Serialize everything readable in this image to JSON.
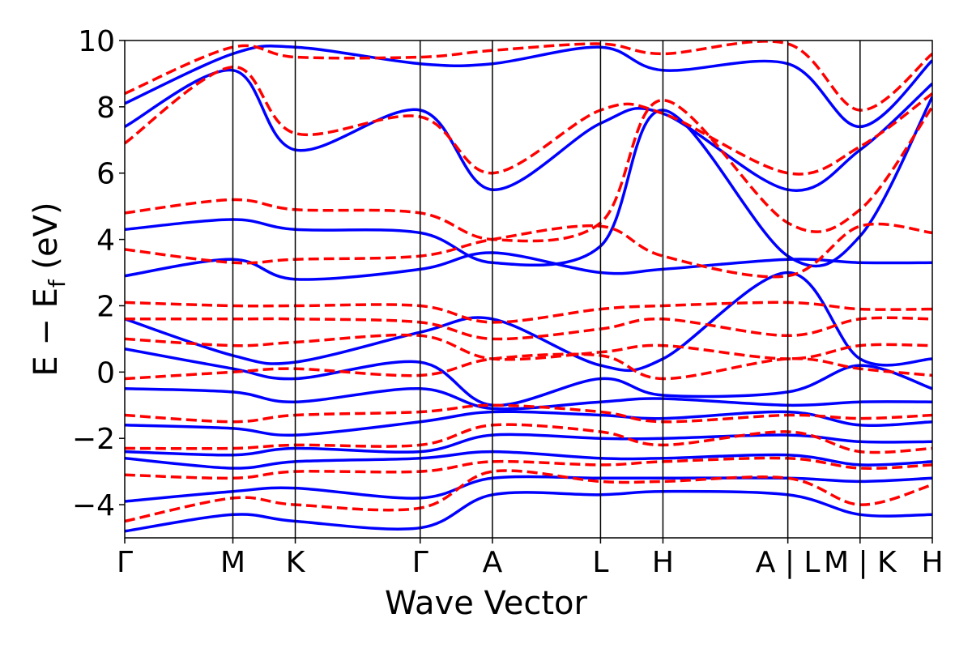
{
  "chart_data": {
    "type": "line",
    "xlabel": "Wave Vector",
    "ylabel": "E − E",
    "ylabel_sub": "f",
    "ylabel_unit": " (eV)",
    "ylim": [
      -5,
      10
    ],
    "yticks": [
      -4,
      -2,
      0,
      2,
      4,
      6,
      8,
      10
    ],
    "ytick_labels": [
      "−4",
      "−2",
      "0",
      "2",
      "4",
      "6",
      "8",
      "10"
    ],
    "grid": false,
    "legend": "none",
    "high_symmetry_ticks": [
      {
        "label": "Γ",
        "pos": 0.0
      },
      {
        "label": "M",
        "pos": 1.0
      },
      {
        "label": "K",
        "pos": 1.577
      },
      {
        "label": "Γ",
        "pos": 2.732
      },
      {
        "label": "A",
        "pos": 3.4
      },
      {
        "label": "L",
        "pos": 4.4
      },
      {
        "label": "H",
        "pos": 4.977
      },
      {
        "label": "A | L",
        "pos": 6.132
      },
      {
        "label": "M | K",
        "pos": 6.8
      },
      {
        "label": "H",
        "pos": 7.468
      }
    ],
    "xlim": [
      0,
      7.468
    ],
    "series": [
      {
        "style": "solid",
        "color": "#0000ff",
        "bands": [
          {
            "x": [
              0,
              1,
              1.577,
              2.732,
              3.4,
              4.4,
              4.977,
              6.132,
              6.8,
              7.468
            ],
            "y": [
              -4.8,
              -4.3,
              -4.5,
              -4.7,
              -3.7,
              -3.7,
              -3.6,
              -3.7,
              -4.3,
              -4.3
            ]
          },
          {
            "x": [
              0,
              1,
              1.577,
              2.732,
              3.4,
              4.4,
              4.977,
              6.132,
              6.8,
              7.468
            ],
            "y": [
              -3.9,
              -3.6,
              -3.5,
              -3.8,
              -3.2,
              -3.2,
              -3.2,
              -3.2,
              -3.3,
              -3.2
            ]
          },
          {
            "x": [
              0,
              1,
              1.577,
              2.732,
              3.4,
              4.4,
              4.977,
              6.132,
              6.8,
              7.468
            ],
            "y": [
              -2.6,
              -2.9,
              -2.7,
              -2.6,
              -2.4,
              -2.6,
              -2.6,
              -2.5,
              -2.8,
              -2.7
            ]
          },
          {
            "x": [
              0,
              1,
              1.577,
              2.732,
              3.4,
              4.4,
              4.977,
              6.132,
              6.8,
              7.468
            ],
            "y": [
              -2.4,
              -2.5,
              -2.3,
              -2.4,
              -1.9,
              -2.0,
              -2.0,
              -1.9,
              -2.1,
              -2.1
            ]
          },
          {
            "x": [
              0,
              1,
              1.577,
              2.732,
              3.4,
              4.4,
              4.977,
              6.132,
              6.8,
              7.468
            ],
            "y": [
              -1.6,
              -1.7,
              -1.9,
              -1.5,
              -1.2,
              -1.3,
              -1.4,
              -1.2,
              -1.6,
              -1.5
            ]
          },
          {
            "x": [
              0,
              1,
              1.577,
              2.732,
              3.4,
              4.4,
              4.977,
              6.132,
              6.8,
              7.468
            ],
            "y": [
              -0.5,
              -0.6,
              -0.9,
              -0.5,
              -1.1,
              -0.9,
              -0.8,
              -1.0,
              -0.9,
              -0.9
            ]
          },
          {
            "x": [
              0,
              1,
              1.577,
              2.732,
              3.4,
              4.4,
              4.977,
              6.132,
              6.8,
              7.468
            ],
            "y": [
              0.7,
              0.1,
              -0.2,
              0.3,
              -1.0,
              -0.2,
              -0.7,
              -0.6,
              0.2,
              -0.5
            ]
          },
          {
            "x": [
              0,
              1,
              1.577,
              2.732,
              3.4,
              4.4,
              4.977,
              6.132,
              6.8,
              7.468
            ],
            "y": [
              1.6,
              0.5,
              0.3,
              1.2,
              1.6,
              0.2,
              0.4,
              3.0,
              0.4,
              0.4
            ]
          },
          {
            "x": [
              0,
              1,
              1.577,
              2.732,
              3.4,
              4.4,
              4.977,
              6.132,
              6.8,
              7.468
            ],
            "y": [
              2.9,
              3.4,
              2.8,
              3.1,
              3.6,
              3.0,
              3.1,
              3.4,
              3.3,
              3.3
            ]
          },
          {
            "x": [
              0,
              1,
              1.577,
              2.732,
              3.4,
              4.4,
              4.977,
              6.132,
              6.8,
              7.468
            ],
            "y": [
              4.3,
              4.6,
              4.3,
              4.2,
              3.3,
              3.8,
              7.9,
              3.5,
              4.1,
              8.3
            ]
          },
          {
            "x": [
              0,
              1,
              1.577,
              2.732,
              3.4,
              4.4,
              4.977,
              6.132,
              6.8,
              7.468
            ],
            "y": [
              7.4,
              9.1,
              6.7,
              7.9,
              5.5,
              7.5,
              7.8,
              5.5,
              6.7,
              8.7
            ]
          },
          {
            "x": [
              0,
              1,
              1.577,
              2.732,
              3.4,
              4.4,
              4.977,
              6.132,
              6.8,
              7.468
            ],
            "y": [
              8.1,
              9.6,
              9.8,
              9.3,
              9.3,
              9.8,
              9.1,
              9.3,
              7.4,
              9.4
            ]
          }
        ]
      },
      {
        "style": "dashed",
        "color": "#ff0000",
        "bands": [
          {
            "x": [
              0,
              1,
              1.577,
              2.732,
              3.4,
              4.4,
              4.977,
              6.132,
              6.8,
              7.468
            ],
            "y": [
              -4.5,
              -3.8,
              -4.0,
              -4.1,
              -3.0,
              -3.3,
              -3.3,
              -3.2,
              -4.0,
              -3.4
            ]
          },
          {
            "x": [
              0,
              1,
              1.577,
              2.732,
              3.4,
              4.4,
              4.977,
              6.132,
              6.8,
              7.468
            ],
            "y": [
              -3.1,
              -3.2,
              -3.0,
              -3.0,
              -2.7,
              -2.8,
              -2.7,
              -2.6,
              -2.9,
              -2.8
            ]
          },
          {
            "x": [
              0,
              1,
              1.577,
              2.732,
              3.4,
              4.4,
              4.977,
              6.132,
              6.8,
              7.468
            ],
            "y": [
              -2.3,
              -2.3,
              -2.2,
              -2.2,
              -1.6,
              -1.8,
              -2.2,
              -1.8,
              -2.4,
              -2.3
            ]
          },
          {
            "x": [
              0,
              1,
              1.577,
              2.732,
              3.4,
              4.4,
              4.977,
              6.132,
              6.8,
              7.468
            ],
            "y": [
              -1.3,
              -1.5,
              -1.3,
              -1.2,
              -1.0,
              -1.2,
              -1.5,
              -1.3,
              -1.4,
              -1.3
            ]
          },
          {
            "x": [
              0,
              1,
              1.577,
              2.732,
              3.4,
              4.4,
              4.977,
              6.132,
              6.8,
              7.468
            ],
            "y": [
              -0.2,
              0.0,
              0.1,
              -0.1,
              0.4,
              0.5,
              -0.2,
              0.4,
              0.1,
              -0.1
            ]
          },
          {
            "x": [
              0,
              1,
              1.577,
              2.732,
              3.4,
              4.4,
              4.977,
              6.132,
              6.8,
              7.468
            ],
            "y": [
              1.0,
              0.8,
              0.9,
              1.1,
              0.4,
              0.6,
              0.8,
              0.4,
              0.8,
              0.8
            ]
          },
          {
            "x": [
              0,
              1,
              1.577,
              2.732,
              3.4,
              4.4,
              4.977,
              6.132,
              6.8,
              7.468
            ],
            "y": [
              1.6,
              1.6,
              1.6,
              1.5,
              1.0,
              1.3,
              1.6,
              1.1,
              1.6,
              1.6
            ]
          },
          {
            "x": [
              0,
              1,
              1.577,
              2.732,
              3.4,
              4.4,
              4.977,
              6.132,
              6.8,
              7.468
            ],
            "y": [
              2.1,
              2.0,
              2.0,
              2.0,
              1.5,
              1.9,
              2.0,
              2.1,
              1.9,
              1.9
            ]
          },
          {
            "x": [
              0,
              1,
              1.577,
              2.732,
              3.4,
              4.4,
              4.977,
              6.132,
              6.8,
              7.468
            ],
            "y": [
              3.7,
              3.3,
              3.4,
              3.5,
              4.0,
              4.4,
              3.5,
              2.9,
              4.4,
              4.2
            ]
          },
          {
            "x": [
              0,
              1,
              1.577,
              2.732,
              3.4,
              4.4,
              4.977,
              6.132,
              6.8,
              7.468
            ],
            "y": [
              4.8,
              5.2,
              4.9,
              4.8,
              4.0,
              4.5,
              8.2,
              4.5,
              4.9,
              8.0
            ]
          },
          {
            "x": [
              0,
              1,
              1.577,
              2.732,
              3.4,
              4.4,
              4.977,
              6.132,
              6.8,
              7.468
            ],
            "y": [
              6.9,
              9.2,
              7.2,
              7.7,
              6.0,
              7.9,
              7.8,
              6.0,
              6.8,
              8.4
            ]
          },
          {
            "x": [
              0,
              1,
              1.577,
              2.732,
              3.4,
              4.4,
              4.977,
              6.132,
              6.8,
              7.468
            ],
            "y": [
              8.4,
              9.8,
              9.5,
              9.5,
              9.7,
              9.9,
              9.6,
              9.9,
              7.9,
              9.6
            ]
          }
        ]
      }
    ]
  }
}
